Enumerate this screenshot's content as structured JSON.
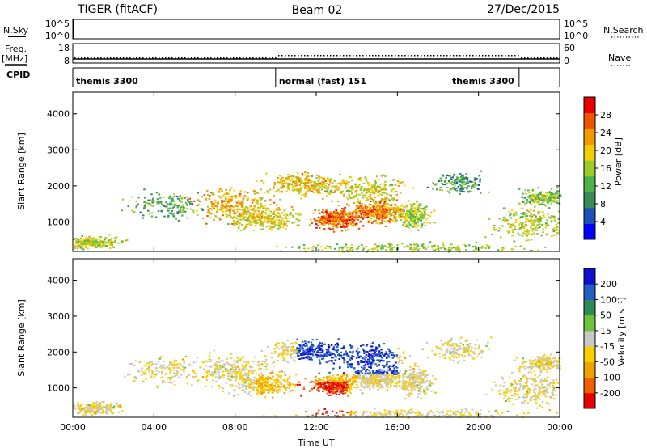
{
  "header": {
    "radar": "TIGER (fitACF)",
    "beam": "Beam 02",
    "date": "27/Dec/2015"
  },
  "side_labels": {
    "nsky": "N.Sky",
    "freq": "Freq.",
    "freq_unit": "[MHz]",
    "cpid": "CPID",
    "nsearch": "N.Search",
    "nave": "Nave"
  },
  "mini_axes": {
    "nsky_ticks": [
      "10^5",
      "10^0"
    ],
    "nsearch_ticks": [
      "10^5",
      "10^0"
    ],
    "freq_ticks": [
      "18",
      "8"
    ],
    "nave_ticks": [
      "60",
      "0"
    ]
  },
  "cpid_segments": [
    {
      "label": "themis 3300",
      "start_h": 0,
      "end_h": 10
    },
    {
      "label": "normal (fast) 151",
      "start_h": 10,
      "end_h": 22
    },
    {
      "label": "themis 3300",
      "start_h": 22,
      "end_h": 24
    }
  ],
  "colors": {
    "power": [
      "#0000ff",
      "#1f4fbd",
      "#3a8a5a",
      "#4cb34c",
      "#9ccc2a",
      "#f0d000",
      "#f39a00",
      "#ee5500",
      "#e60000"
    ],
    "velocity": [
      "#e60000",
      "#f06000",
      "#f0a000",
      "#f8d000",
      "#c8c8c8",
      "#6fc23c",
      "#2e8b57",
      "#1f60c0",
      "#1010d0"
    ]
  },
  "chart_data": [
    {
      "type": "heatmap",
      "name": "power-panel",
      "ylabel": "Slant Range [km]",
      "xlim": [
        0,
        24
      ],
      "ylim": [
        180,
        4600
      ],
      "y_ticks": [
        1000,
        2000,
        3000,
        4000
      ],
      "colorbar": {
        "label": "Power [dB]",
        "range": [
          0,
          32
        ],
        "ticks": [
          "4",
          "8",
          "12",
          "16",
          "20",
          "24",
          "28"
        ]
      }
    },
    {
      "type": "heatmap",
      "name": "velocity-panel",
      "xlabel": "Time UT",
      "ylabel": "Slant Range [km]",
      "xlim": [
        0,
        24
      ],
      "ylim": [
        180,
        4600
      ],
      "x_ticks": [
        "00:00",
        "04:00",
        "08:00",
        "12:00",
        "16:00",
        "20:00",
        "00:00"
      ],
      "y_ticks": [
        1000,
        2000,
        3000,
        4000
      ],
      "colorbar": {
        "label": "Velocity [m s⁻¹]",
        "ticks": [
          "200",
          "100",
          "50",
          "15",
          "-15",
          "-50",
          "-100",
          "-200"
        ]
      }
    }
  ]
}
